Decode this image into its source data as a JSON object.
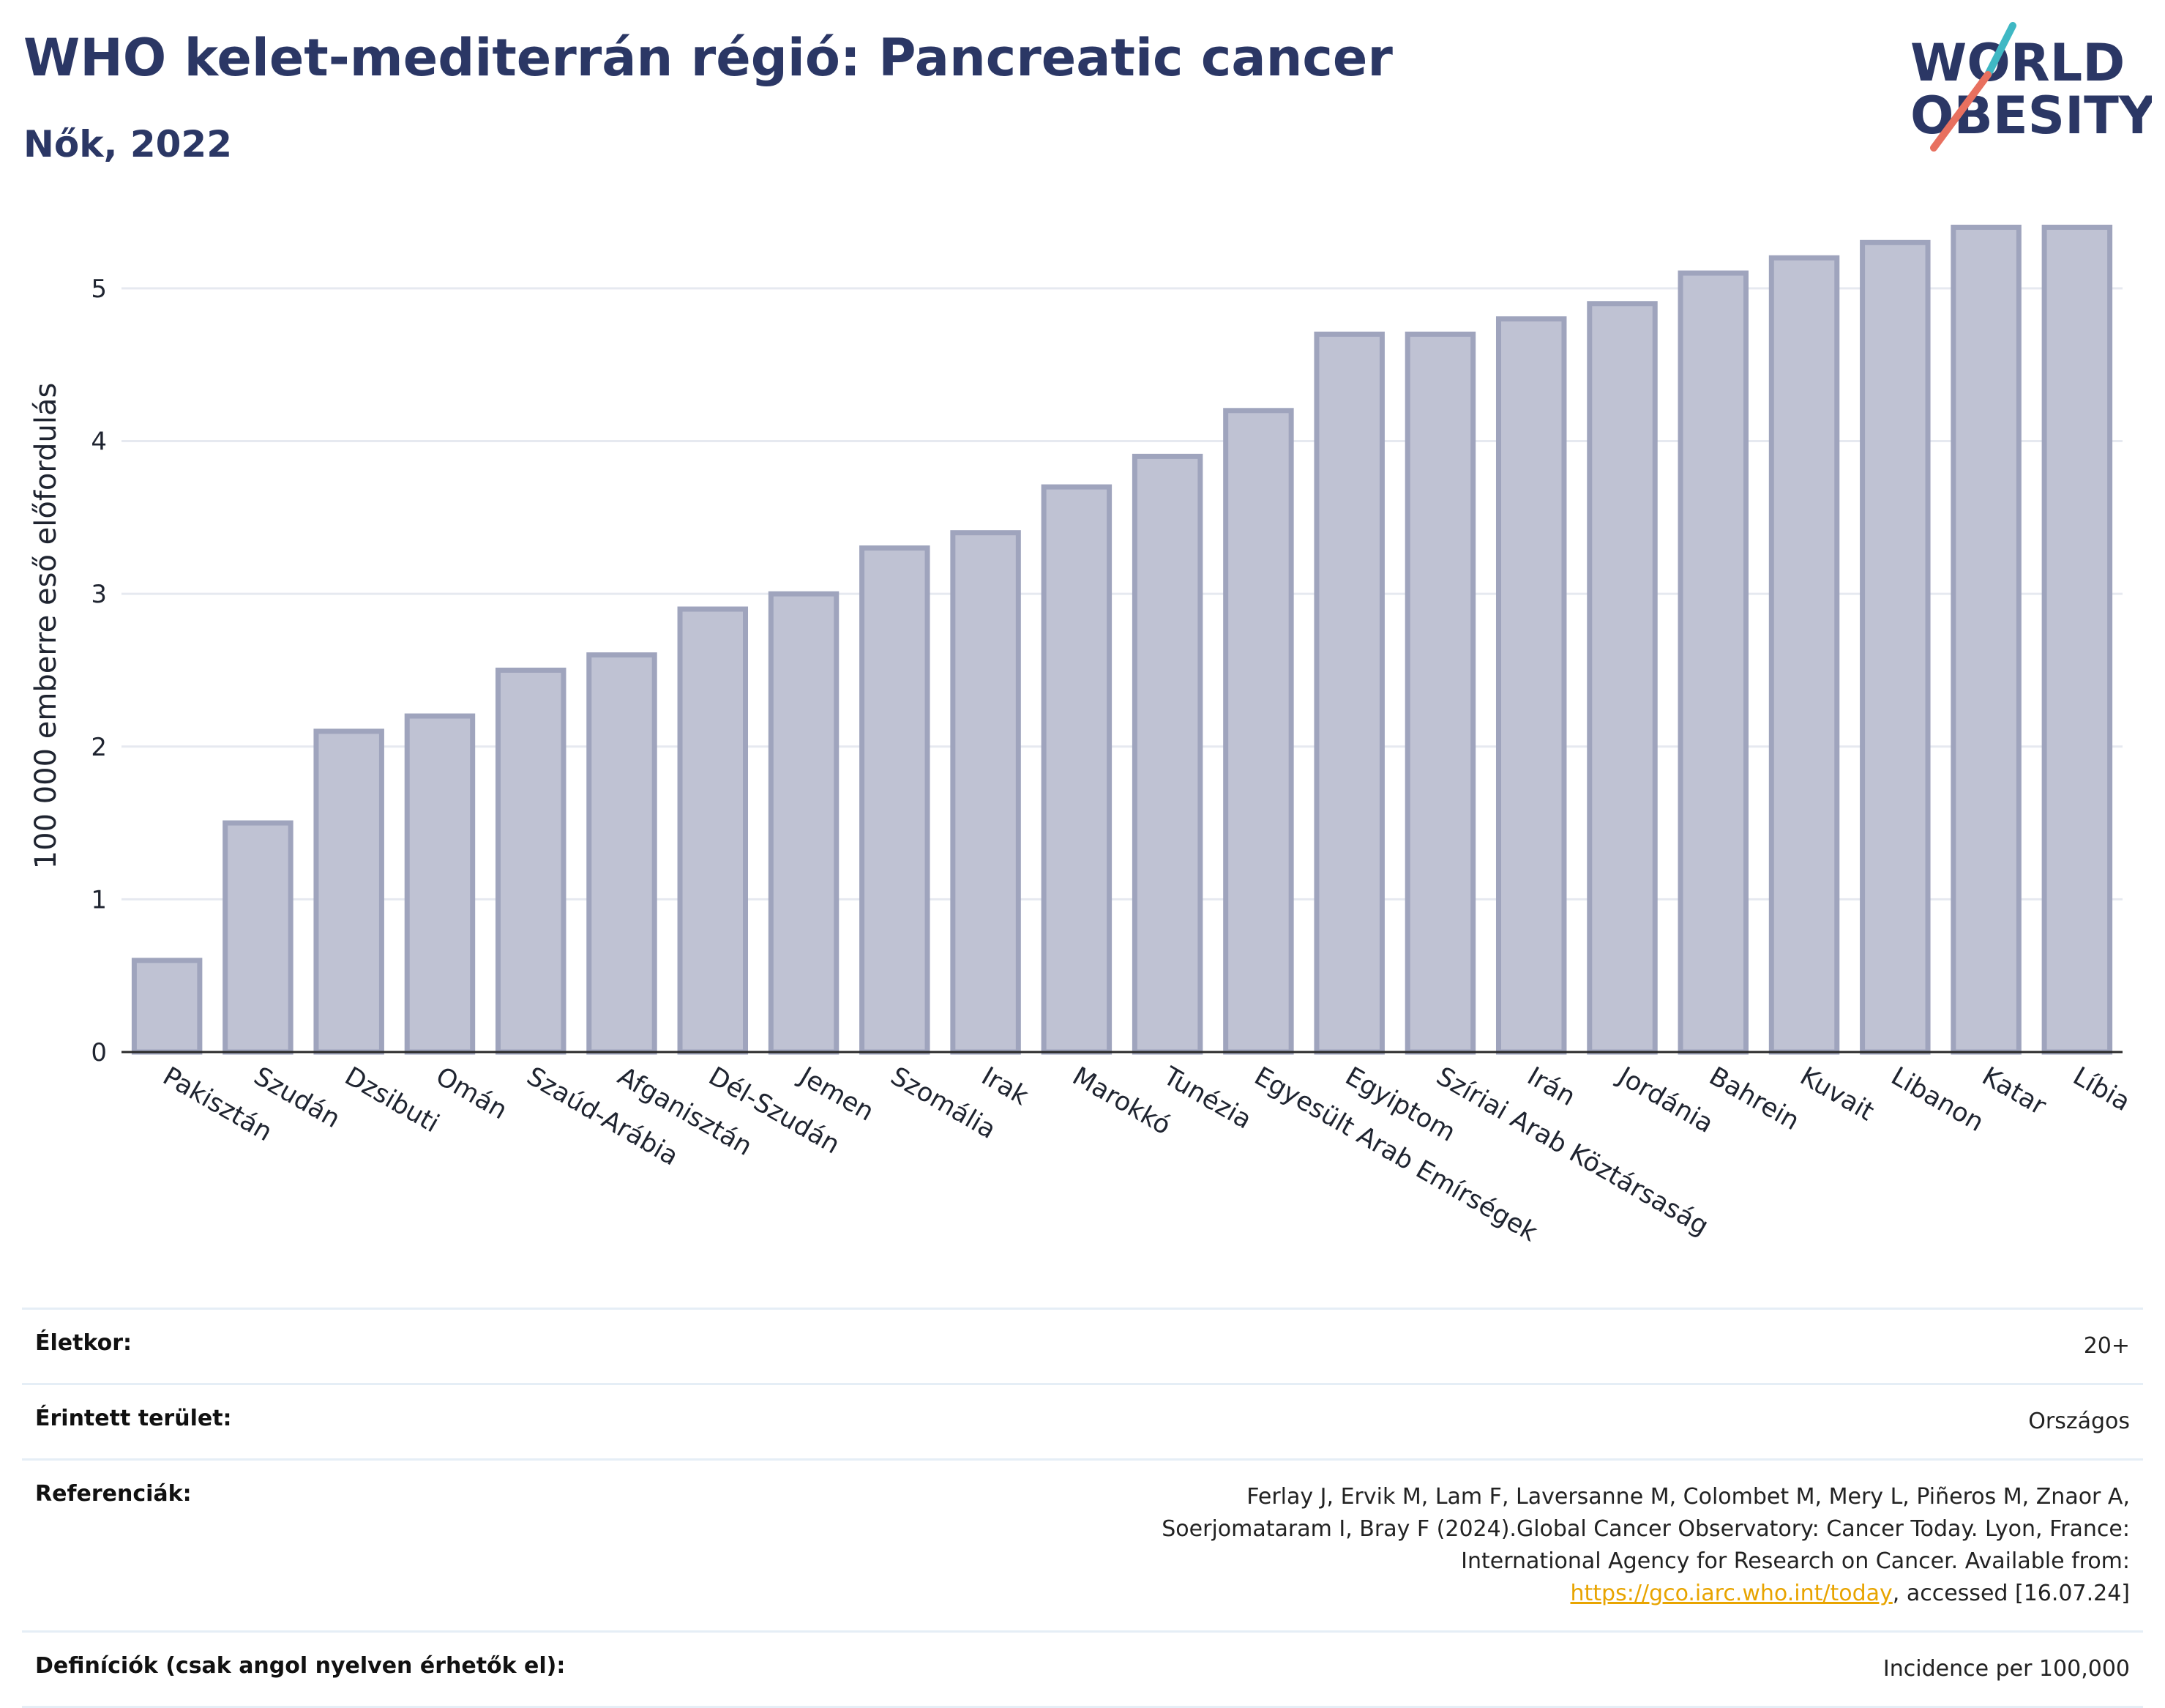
{
  "header": {
    "title": "WHO kelet-mediterrán régió: Pancreatic cancer",
    "subtitle": "Nők, 2022"
  },
  "logo": {
    "line1": "WORLD",
    "line2": "OBESITY",
    "colors": {
      "text": "#2b3765",
      "slash_red": "#e8705f",
      "slash_teal": "#3fb8c4"
    }
  },
  "colors": {
    "bar_fill": "#bfc2d3",
    "bar_stroke": "#9fa4bd",
    "grid": "#e6e9f0",
    "axis": "#2a2a2a"
  },
  "chart_data": {
    "type": "bar",
    "title": "",
    "xlabel": "",
    "ylabel": "100 000 emberre eső előfordulás",
    "ylim": [
      0,
      5.45
    ],
    "yticks": [
      0,
      1,
      2,
      3,
      4,
      5
    ],
    "grid": true,
    "categories": [
      "Pakisztán",
      "Szudán",
      "Dzsibuti",
      "Omán",
      "Szaúd-Arábia",
      "Afganisztán",
      "Dél-Szudán",
      "Jemen",
      "Szomália",
      "Irak",
      "Marokkó",
      "Tunézia",
      "Egyesült Arab Emírségek",
      "Egyiptom",
      "Szíriai Arab Köztársaság",
      "Irán",
      "Jordánia",
      "Bahrein",
      "Kuvait",
      "Libanon",
      "Katar",
      "Líbia"
    ],
    "values": [
      0.6,
      1.5,
      2.1,
      2.2,
      2.5,
      2.6,
      2.9,
      3.0,
      3.3,
      3.4,
      3.7,
      3.9,
      4.2,
      4.7,
      4.7,
      4.8,
      4.9,
      5.1,
      5.2,
      5.3,
      5.4,
      5.4
    ]
  },
  "info": {
    "age_label": "Életkor:",
    "age_value": "20+",
    "area_label": "Érintett terület:",
    "area_value": "Országos",
    "ref_label": "Referenciák:",
    "ref_text_1": "Ferlay J, Ervik M, Lam F, Laversanne M, Colombet M, Mery L, Piñeros M, Znaor A, Soerjomataram I, Bray F (2024).Global Cancer Observatory: Cancer Today. Lyon, France: International Agency for Research on Cancer. Available from: ",
    "ref_link": "https://gco.iarc.who.int/today",
    "ref_text_2": ", accessed [16.07.24]",
    "def_label": "Definíciók (csak angol nyelven érhetők el):",
    "def_value": "Incidence per 100,000"
  }
}
